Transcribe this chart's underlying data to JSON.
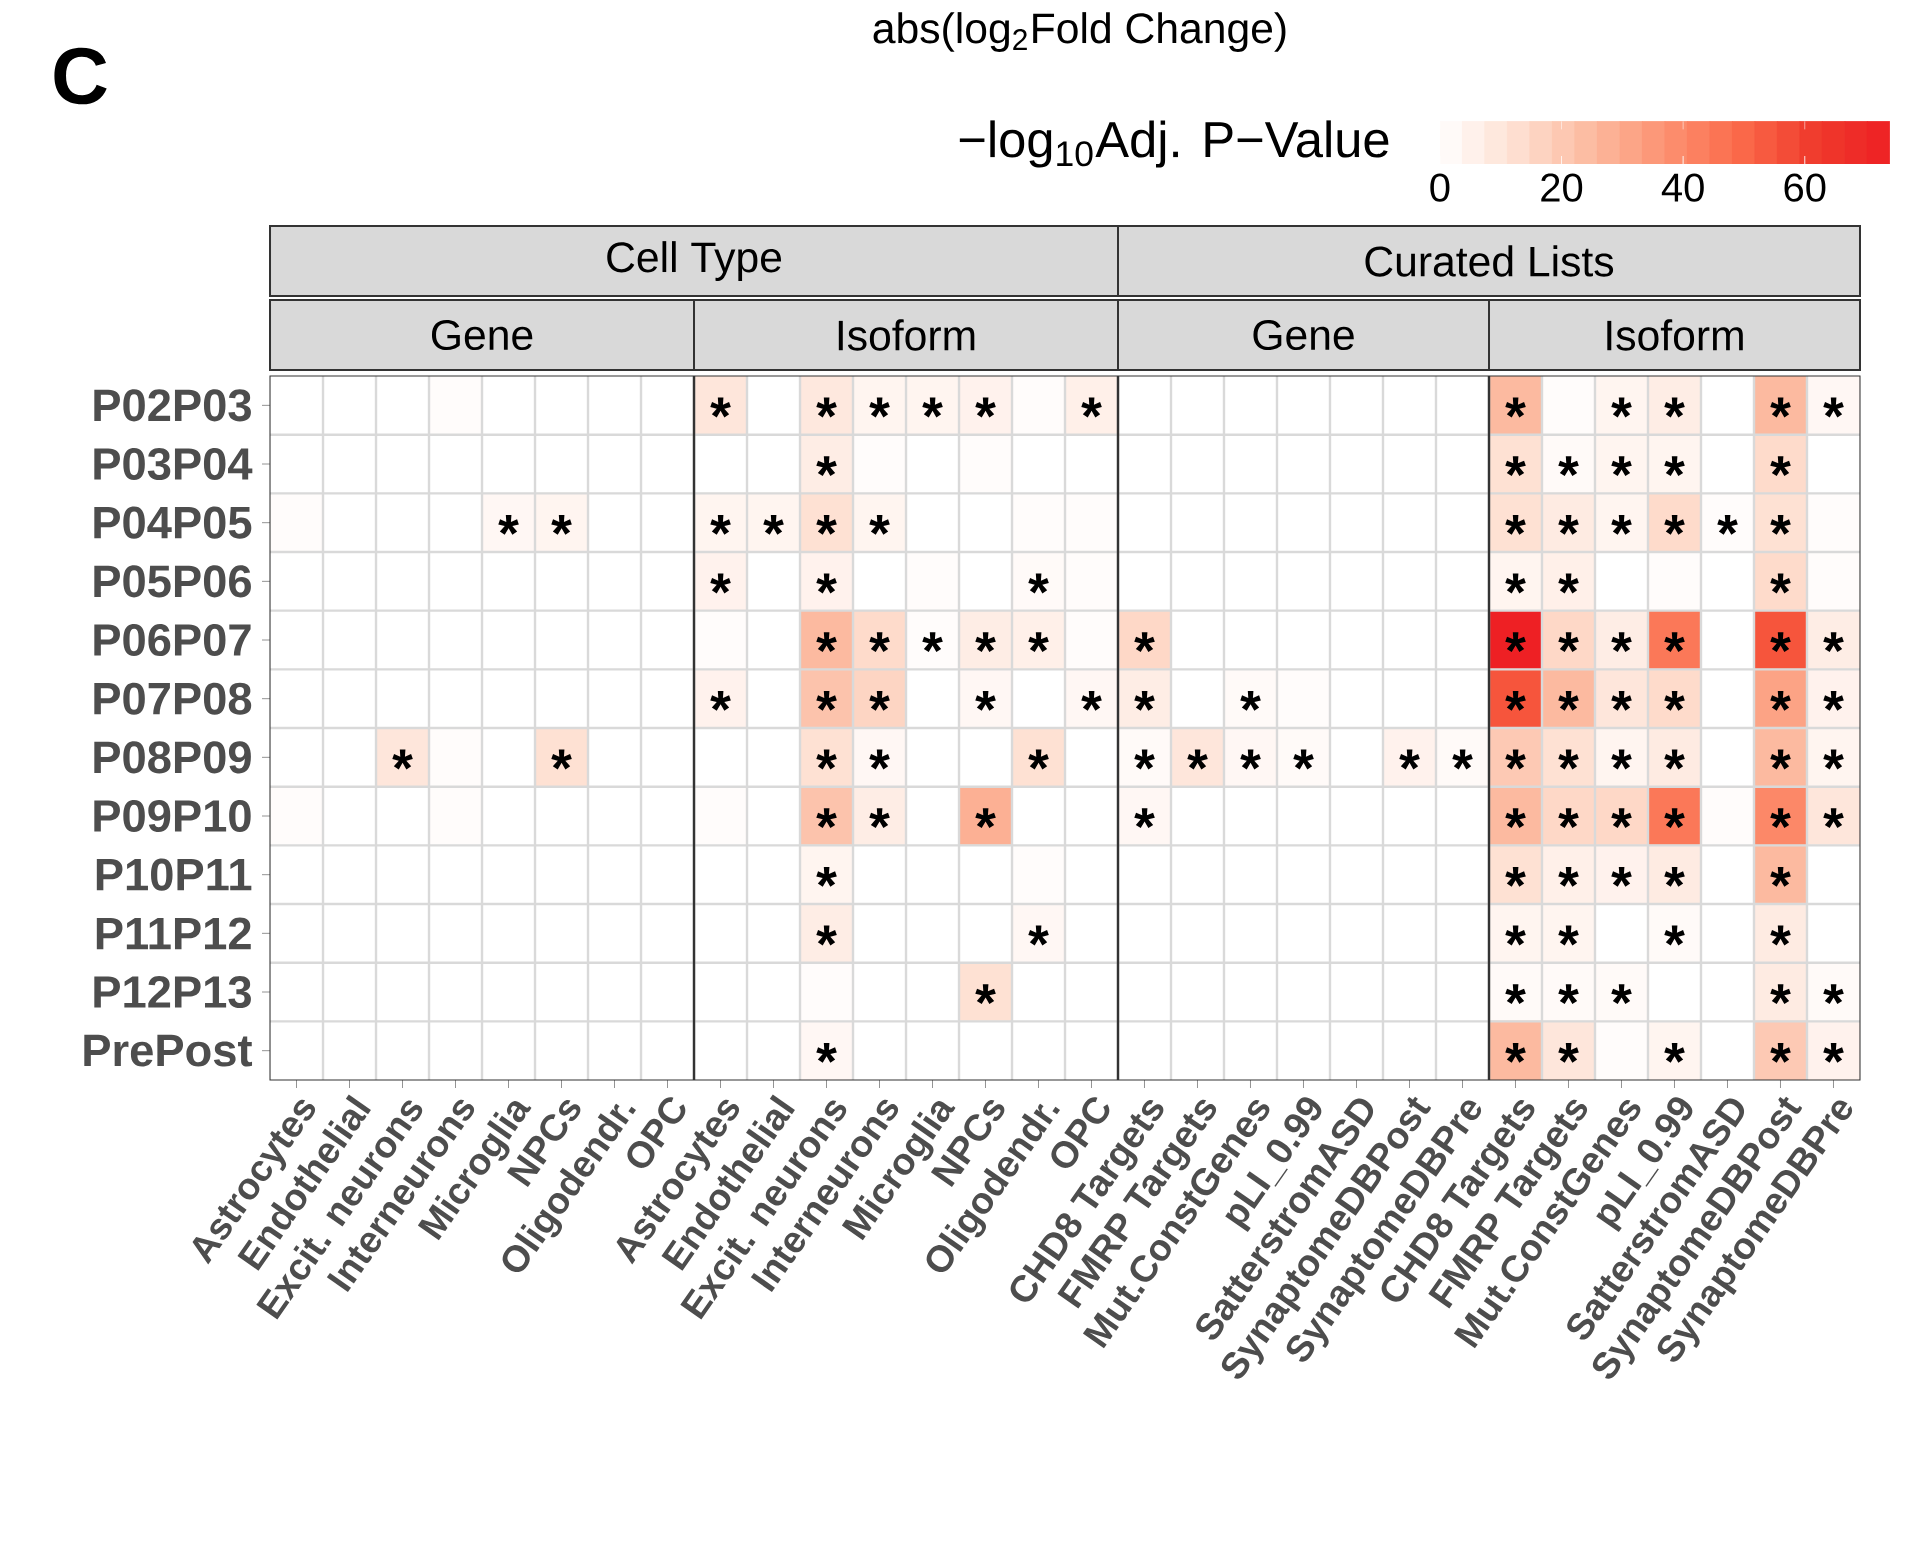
{
  "chart_data": {
    "type": "heatmap",
    "title": "abs(log$_{2}$Fold Change)",
    "clabel": "−log$_{10}$Adj. P−Value",
    "annotations": [
      "C",
      "Cell Type",
      "Curated Lists",
      "Gene",
      "Isoform",
      "Gene",
      "Isoform"
    ],
    "categories": [
      "Astrocytes",
      "Endothelial",
      "Excit. neurons",
      "Interneurons",
      "Microglia",
      "NPCs",
      "Oligodendr.",
      "OPC",
      "Astrocytes",
      "Endothelial",
      "Excit. neurons",
      "Interneurons",
      "Microglia",
      "NPCs",
      "Oligodendr.",
      "OPC",
      "CHD8 Targets",
      "FMRP Targets",
      "Mut.ConstGenes",
      "pLI_0.99",
      "SatterstromASD",
      "SynaptomeDBPost",
      "SynaptomeDBPre",
      "CHD8 Targets",
      "FMRP Targets",
      "Mut.ConstGenes",
      "pLI_0.99",
      "SatterstromASD",
      "SynaptomeDBPost",
      "SynaptomeDBPre"
    ],
    "y_categories": [
      "P02P03",
      "P03P04",
      "P04P05",
      "P05P06",
      "P06P07",
      "P07P08",
      "P08P09",
      "P09P10",
      "P10P11",
      "P11P12",
      "P12P13",
      "PrePost"
    ],
    "cells": [
      [
        0,
        0,
        0,
        1,
        0,
        0,
        0,
        0,
        10,
        0,
        9,
        4,
        4,
        5,
        1,
        6,
        0,
        0,
        0,
        0,
        0,
        0,
        0,
        25,
        1,
        4,
        7,
        0,
        25,
        3
      ],
      [
        0,
        0,
        0,
        0,
        0,
        0,
        0,
        0,
        0,
        0,
        7,
        1,
        0,
        1,
        0,
        0,
        0,
        0,
        0,
        0,
        0,
        0,
        0,
        12,
        2,
        4,
        4,
        0,
        14,
        0
      ],
      [
        1,
        0,
        0,
        0,
        3,
        4,
        0,
        0,
        4,
        4,
        12,
        4,
        0,
        0,
        1,
        1,
        0,
        0,
        0,
        0,
        0,
        0,
        0,
        12,
        8,
        4,
        14,
        1,
        12,
        1
      ],
      [
        0,
        0,
        0,
        0,
        0,
        0,
        0,
        0,
        5,
        0,
        5,
        0,
        1,
        0,
        2,
        1,
        0,
        0,
        0,
        0,
        0,
        0,
        0,
        4,
        6,
        0,
        1,
        0,
        14,
        1
      ],
      [
        0,
        0,
        0,
        0,
        0,
        0,
        0,
        0,
        1,
        0,
        25,
        14,
        1,
        7,
        6,
        1,
        15,
        0,
        0,
        0,
        0,
        0,
        0,
        74,
        15,
        7,
        45,
        0,
        55,
        7
      ],
      [
        0,
        0,
        0,
        0,
        0,
        0,
        0,
        0,
        5,
        0,
        22,
        16,
        0,
        3,
        0,
        3,
        7,
        0,
        2,
        1,
        0,
        0,
        0,
        55,
        25,
        10,
        14,
        0,
        32,
        5
      ],
      [
        0,
        0,
        10,
        1,
        0,
        12,
        0,
        0,
        0,
        0,
        12,
        3,
        0,
        0,
        12,
        0,
        2,
        10,
        3,
        2,
        0,
        5,
        2,
        20,
        12,
        4,
        8,
        0,
        25,
        4
      ],
      [
        1,
        0,
        0,
        1,
        0,
        0,
        0,
        0,
        1,
        0,
        22,
        7,
        0,
        28,
        0,
        0,
        3,
        0,
        0,
        0,
        0,
        0,
        0,
        25,
        15,
        15,
        45,
        1,
        40,
        10
      ],
      [
        0,
        0,
        0,
        0,
        0,
        0,
        0,
        0,
        0,
        0,
        4,
        0,
        0,
        0,
        1,
        0,
        0,
        0,
        0,
        0,
        0,
        0,
        0,
        12,
        6,
        5,
        8,
        0,
        25,
        0
      ],
      [
        0,
        0,
        0,
        0,
        0,
        0,
        0,
        0,
        0,
        0,
        7,
        0,
        0,
        0,
        3,
        0,
        0,
        0,
        0,
        0,
        0,
        0,
        0,
        4,
        4,
        0,
        2,
        0,
        8,
        0
      ],
      [
        0,
        0,
        0,
        0,
        0,
        0,
        0,
        0,
        0,
        0,
        1,
        0,
        0,
        12,
        0,
        0,
        0,
        0,
        0,
        0,
        0,
        0,
        0,
        2,
        2,
        2,
        0,
        0,
        8,
        2
      ],
      [
        0,
        0,
        0,
        0,
        0,
        0,
        0,
        0,
        0,
        0,
        3,
        0,
        0,
        0,
        0,
        0,
        0,
        0,
        0,
        0,
        0,
        0,
        0,
        25,
        10,
        1,
        4,
        0,
        20,
        5
      ]
    ],
    "cell_labels": [
      [
        null,
        null,
        null,
        null,
        null,
        null,
        null,
        null,
        "*",
        null,
        "*",
        "*",
        "*",
        "*",
        null,
        "*",
        null,
        null,
        null,
        null,
        null,
        null,
        null,
        "*",
        null,
        "*",
        "*",
        null,
        "*",
        "*"
      ],
      [
        null,
        null,
        null,
        null,
        null,
        null,
        null,
        null,
        null,
        null,
        "*",
        null,
        null,
        null,
        null,
        null,
        null,
        null,
        null,
        null,
        null,
        null,
        null,
        "*",
        "*",
        "*",
        "*",
        null,
        "*",
        null
      ],
      [
        null,
        null,
        null,
        null,
        "*",
        "*",
        null,
        null,
        "*",
        "*",
        "*",
        "*",
        null,
        null,
        null,
        null,
        null,
        null,
        null,
        null,
        null,
        null,
        null,
        "*",
        "*",
        "*",
        "*",
        "*",
        "*",
        null
      ],
      [
        null,
        null,
        null,
        null,
        null,
        null,
        null,
        null,
        "*",
        null,
        "*",
        null,
        null,
        null,
        "*",
        null,
        null,
        null,
        null,
        null,
        null,
        null,
        null,
        "*",
        "*",
        null,
        null,
        null,
        "*",
        null
      ],
      [
        null,
        null,
        null,
        null,
        null,
        null,
        null,
        null,
        null,
        null,
        "*",
        "*",
        "*",
        "*",
        "*",
        null,
        "*",
        null,
        null,
        null,
        null,
        null,
        null,
        "*",
        "*",
        "*",
        "*",
        null,
        "*",
        "*"
      ],
      [
        null,
        null,
        null,
        null,
        null,
        null,
        null,
        null,
        "*",
        null,
        "*",
        "*",
        null,
        "*",
        null,
        "*",
        "*",
        null,
        "*",
        null,
        null,
        null,
        null,
        "*",
        "*",
        "*",
        "*",
        null,
        "*",
        "*"
      ],
      [
        null,
        null,
        "*",
        null,
        null,
        "*",
        null,
        null,
        null,
        null,
        "*",
        "*",
        null,
        null,
        "*",
        null,
        "*",
        "*",
        "*",
        "*",
        null,
        "*",
        "*",
        "*",
        "*",
        "*",
        "*",
        null,
        "*",
        "*"
      ],
      [
        null,
        null,
        null,
        null,
        null,
        null,
        null,
        null,
        null,
        null,
        "*",
        "*",
        null,
        "*",
        null,
        null,
        "*",
        null,
        null,
        null,
        null,
        null,
        null,
        "*",
        "*",
        "*",
        "*",
        null,
        "*",
        "*"
      ],
      [
        null,
        null,
        null,
        null,
        null,
        null,
        null,
        null,
        null,
        null,
        "*",
        null,
        null,
        null,
        null,
        null,
        null,
        null,
        null,
        null,
        null,
        null,
        null,
        "*",
        "*",
        "*",
        "*",
        null,
        "*",
        null
      ],
      [
        null,
        null,
        null,
        null,
        null,
        null,
        null,
        null,
        null,
        null,
        "*",
        null,
        null,
        null,
        "*",
        null,
        null,
        null,
        null,
        null,
        null,
        null,
        null,
        "*",
        "*",
        null,
        "*",
        null,
        "*",
        null
      ],
      [
        null,
        null,
        null,
        null,
        null,
        null,
        null,
        null,
        null,
        null,
        null,
        null,
        null,
        "*",
        null,
        null,
        null,
        null,
        null,
        null,
        null,
        null,
        null,
        "*",
        "*",
        "*",
        null,
        null,
        "*",
        "*"
      ],
      [
        null,
        null,
        null,
        null,
        null,
        null,
        null,
        null,
        null,
        null,
        "*",
        null,
        null,
        null,
        null,
        null,
        null,
        null,
        null,
        null,
        null,
        null,
        null,
        "*",
        "*",
        null,
        "*",
        null,
        "*",
        "*"
      ]
    ],
    "clim": [
      0,
      74
    ],
    "cticks": [
      0,
      20,
      40,
      60
    ]
  }
}
